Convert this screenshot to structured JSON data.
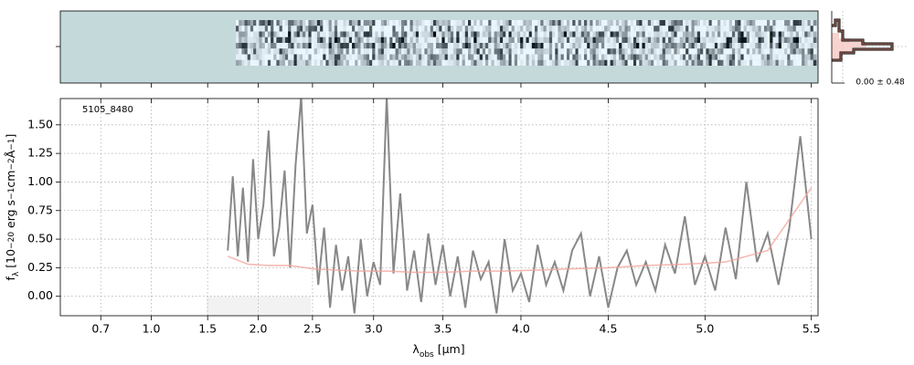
{
  "chart_data": {
    "type": "line",
    "annotation": "5105_8480",
    "side_label": "0.00 ± 0.48",
    "xlabel": [
      {
        "text": "λ"
      },
      {
        "text": "obs",
        "shift": "sub"
      },
      {
        "text": " [μm]"
      }
    ],
    "ylabel": [
      {
        "text": "f"
      },
      {
        "text": "λ",
        "shift": "sub"
      },
      {
        "text": " [10"
      },
      {
        "text": "−20",
        "shift": "sup"
      },
      {
        "text": " erg s"
      },
      {
        "text": "−1",
        "shift": "sup"
      },
      {
        "text": "cm"
      },
      {
        "text": "−2",
        "shift": "sup"
      },
      {
        "text": "Å"
      },
      {
        "text": "−1",
        "shift": "sup"
      },
      {
        "text": "]"
      }
    ],
    "xlim": [
      0.55,
      5.53
    ],
    "ylim": [
      -0.17,
      1.73
    ],
    "xticks": [
      0.7,
      {
        "value": 1.0,
        "label": "1.0"
      },
      1.5,
      {
        "value": 2.0,
        "label": "2.0"
      },
      2.5,
      {
        "value": 3.0,
        "label": "3.0"
      },
      3.5,
      {
        "value": 4.0,
        "label": "4.0"
      },
      4.5,
      {
        "value": 5.0,
        "label": "5.0"
      },
      5.5
    ],
    "yticks": [
      {
        "value": 0,
        "label": "0.00"
      },
      0.25,
      {
        "value": 0.5,
        "label": "0.50"
      },
      0.75,
      {
        "value": 1,
        "label": "1.00"
      },
      1.25,
      {
        "value": 1.5,
        "label": "1.50"
      }
    ],
    "grid": true,
    "series": [
      {
        "color": "#888888",
        "x": [
          1.7,
          1.75,
          1.8,
          1.85,
          1.9,
          1.95,
          2.0,
          2.05,
          2.1,
          2.15,
          2.2,
          2.25,
          2.3,
          2.35,
          2.4,
          2.45,
          2.5,
          2.55,
          2.6,
          2.65,
          2.7,
          2.75,
          2.8,
          2.85,
          2.9,
          2.95,
          3.0,
          3.05,
          3.1,
          3.15,
          3.2,
          3.25,
          3.3,
          3.35,
          3.4,
          3.45,
          3.5,
          3.55,
          3.6,
          3.65,
          3.7,
          3.75,
          3.8,
          3.85,
          3.9,
          3.95,
          4.0,
          4.05,
          4.1,
          4.15,
          4.2,
          4.25,
          4.3,
          4.35,
          4.4,
          4.45,
          4.5,
          4.55,
          4.6,
          4.65,
          4.7,
          4.75,
          4.8,
          4.85,
          4.9,
          4.95,
          5.0,
          5.05,
          5.1,
          5.15,
          5.2,
          5.25,
          5.3,
          5.35,
          5.4,
          5.45,
          5.5
        ],
        "values": [
          0.4,
          1.05,
          0.35,
          0.95,
          0.3,
          1.2,
          0.5,
          0.8,
          1.45,
          0.35,
          0.6,
          1.1,
          0.25,
          1.15,
          1.75,
          0.55,
          0.8,
          0.1,
          0.6,
          -0.1,
          0.45,
          0.05,
          0.35,
          -0.15,
          0.5,
          0.0,
          0.3,
          0.1,
          1.75,
          0.2,
          0.9,
          0.05,
          0.4,
          -0.05,
          0.55,
          0.1,
          0.45,
          0.0,
          0.35,
          -0.1,
          0.4,
          0.15,
          0.3,
          -0.15,
          0.5,
          0.05,
          0.2,
          -0.05,
          0.45,
          0.1,
          0.3,
          0.05,
          0.4,
          0.55,
          0.0,
          0.35,
          -0.1,
          0.25,
          0.4,
          0.1,
          0.3,
          0.05,
          0.45,
          0.2,
          0.7,
          0.1,
          0.35,
          0.05,
          0.6,
          0.15,
          1.0,
          0.3,
          0.55,
          0.1,
          0.6,
          1.4,
          0.5
        ]
      },
      {
        "color": "#f2a39c",
        "x": [
          1.7,
          1.9,
          2.1,
          2.3,
          2.5,
          2.7,
          2.9,
          3.1,
          3.3,
          3.5,
          3.7,
          3.9,
          4.1,
          4.3,
          4.5,
          4.7,
          4.9,
          5.1,
          5.3,
          5.5
        ],
        "values": [
          0.35,
          0.28,
          0.27,
          0.27,
          0.24,
          0.23,
          0.22,
          0.22,
          0.21,
          0.21,
          0.22,
          0.22,
          0.23,
          0.24,
          0.25,
          0.27,
          0.28,
          0.3,
          0.4,
          0.95
        ]
      }
    ]
  }
}
